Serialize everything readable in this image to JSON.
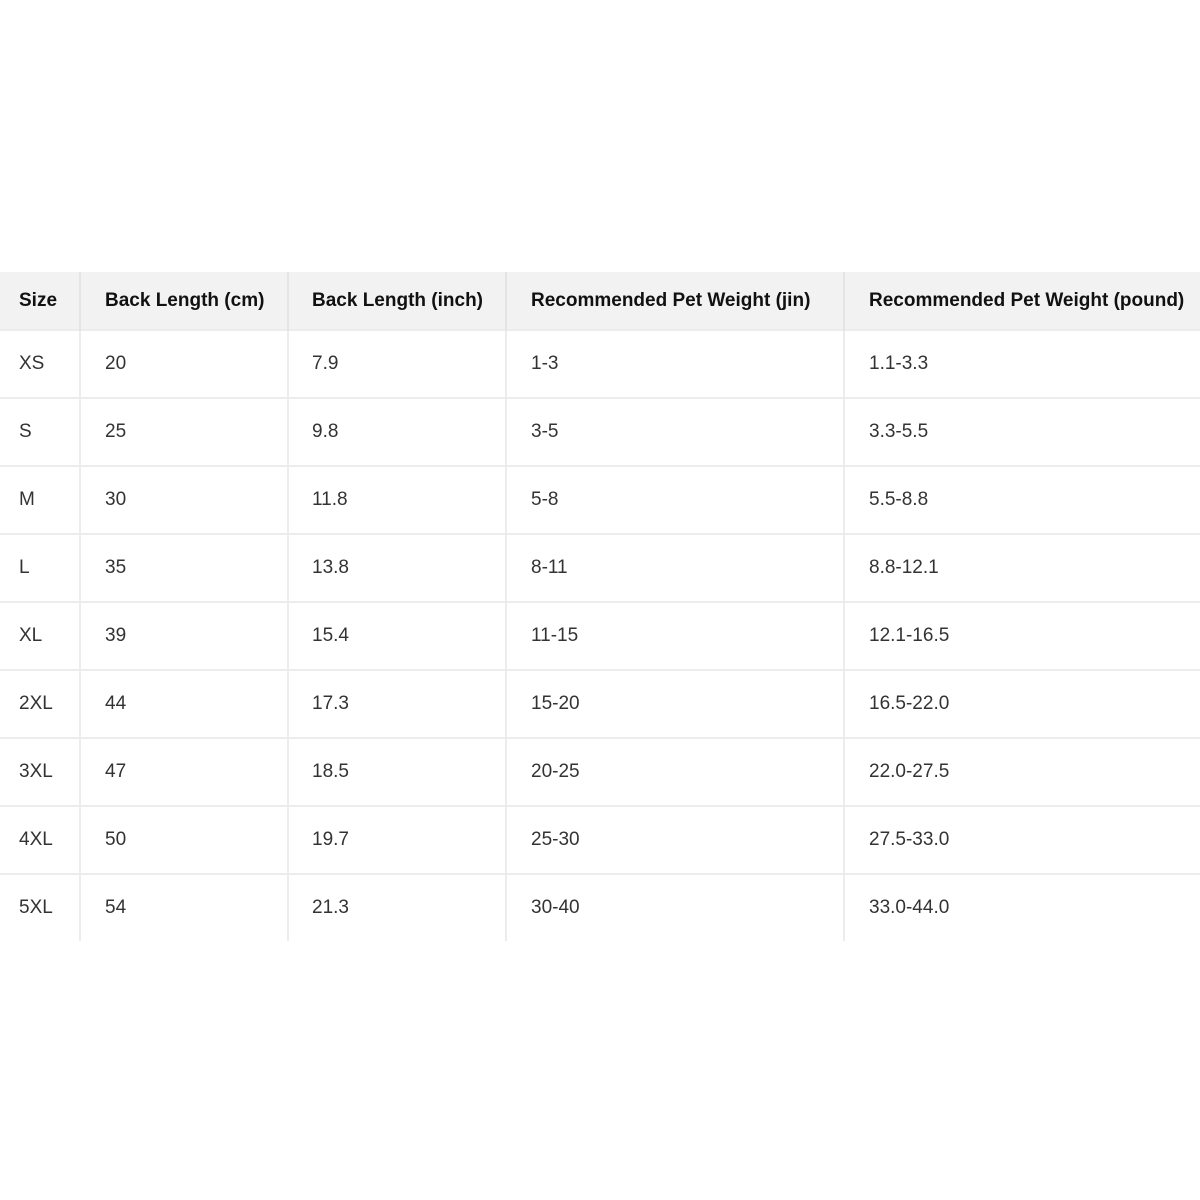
{
  "table": {
    "headers": [
      "Size",
      "Back Length (cm)",
      "Back Length (inch)",
      "Recommended Pet Weight (jin)",
      "Recommended Pet Weight (pound)"
    ],
    "rows": [
      [
        "XS",
        "20",
        "7.9",
        "1-3",
        "1.1-3.3"
      ],
      [
        "S",
        "25",
        "9.8",
        "3-5",
        "3.3-5.5"
      ],
      [
        "M",
        "30",
        "11.8",
        "5-8",
        "5.5-8.8"
      ],
      [
        "L",
        "35",
        "13.8",
        "8-11",
        "8.8-12.1"
      ],
      [
        "XL",
        "39",
        "15.4",
        "11-15",
        "12.1-16.5"
      ],
      [
        "2XL",
        "44",
        "17.3",
        "15-20",
        "16.5-22.0"
      ],
      [
        "3XL",
        "47",
        "18.5",
        "20-25",
        "22.0-27.5"
      ],
      [
        "4XL",
        "50",
        "19.7",
        "25-30",
        "27.5-33.0"
      ],
      [
        "5XL",
        "54",
        "21.3",
        "30-40",
        "33.0-44.0"
      ]
    ]
  },
  "colors": {
    "header_bg": "#f2f2f2",
    "border": "#ececec",
    "text": "#333333"
  }
}
